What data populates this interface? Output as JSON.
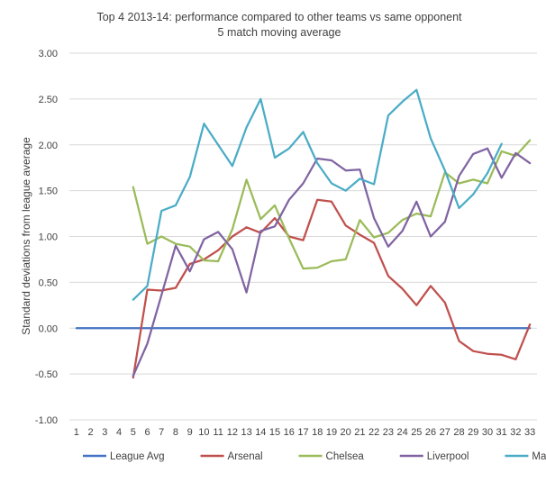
{
  "chart_data": {
    "type": "line",
    "title": "Top 4 2013-14: performance compared to other teams vs same opponent",
    "subtitle": "5 match moving average",
    "xlabel": "",
    "ylabel": "Standard deviations from league average",
    "ylim": [
      -1.0,
      3.0
    ],
    "yticks": [
      "3.00",
      "2.50",
      "2.00",
      "1.50",
      "1.00",
      "0.50",
      "0.00",
      "-0.50",
      "-1.00"
    ],
    "ytick_values": [
      3.0,
      2.5,
      2.0,
      1.5,
      1.0,
      0.5,
      0.0,
      -0.5,
      -1.0
    ],
    "x": [
      1,
      2,
      3,
      4,
      5,
      6,
      7,
      8,
      9,
      10,
      11,
      12,
      13,
      14,
      15,
      16,
      17,
      18,
      19,
      20,
      21,
      22,
      23,
      24,
      25,
      26,
      27,
      28,
      29,
      30,
      31,
      32,
      33
    ],
    "grid": true,
    "legend_position": "bottom",
    "series": [
      {
        "name": "League Avg",
        "color": "#4472c4",
        "x": [
          1,
          2,
          3,
          4,
          5,
          6,
          7,
          8,
          9,
          10,
          11,
          12,
          13,
          14,
          15,
          16,
          17,
          18,
          19,
          20,
          21,
          22,
          23,
          24,
          25,
          26,
          27,
          28,
          29,
          30,
          31,
          32,
          33
        ],
        "values": [
          0,
          0,
          0,
          0,
          0,
          0,
          0,
          0,
          0,
          0,
          0,
          0,
          0,
          0,
          0,
          0,
          0,
          0,
          0,
          0,
          0,
          0,
          0,
          0,
          0,
          0,
          0,
          0,
          0,
          0,
          0,
          0,
          0
        ]
      },
      {
        "name": "Arsenal",
        "color": "#c0504d",
        "x": [
          5,
          6,
          7,
          8,
          9,
          10,
          11,
          12,
          13,
          14,
          15,
          16,
          17,
          18,
          19,
          20,
          21,
          22,
          23,
          24,
          25,
          26,
          27,
          28,
          29,
          30,
          31,
          32,
          33
        ],
        "values": [
          -0.54,
          0.42,
          0.41,
          0.44,
          0.7,
          0.75,
          0.85,
          1.0,
          1.1,
          1.04,
          1.2,
          1.0,
          0.96,
          1.4,
          1.38,
          1.12,
          1.02,
          0.93,
          0.57,
          0.43,
          0.25,
          0.46,
          0.28,
          -0.14,
          -0.25,
          -0.28,
          -0.29,
          -0.34,
          0.04
        ]
      },
      {
        "name": "Chelsea",
        "color": "#9bbb59",
        "x": [
          5,
          6,
          7,
          8,
          9,
          10,
          11,
          12,
          13,
          14,
          15,
          16,
          17,
          18,
          19,
          20,
          21,
          22,
          23,
          24,
          25,
          26,
          27,
          28,
          29,
          30,
          31,
          32,
          33
        ],
        "values": [
          1.54,
          0.92,
          1.0,
          0.92,
          0.89,
          0.74,
          0.73,
          1.08,
          1.62,
          1.19,
          1.34,
          0.98,
          0.65,
          0.66,
          0.73,
          0.75,
          1.18,
          0.99,
          1.04,
          1.18,
          1.25,
          1.22,
          1.7,
          1.58,
          1.62,
          1.58,
          1.93,
          1.88,
          2.05
        ]
      },
      {
        "name": "Liverpool",
        "color": "#8064a2",
        "x": [
          5,
          6,
          7,
          8,
          9,
          10,
          11,
          12,
          13,
          14,
          15,
          16,
          17,
          18,
          19,
          20,
          21,
          22,
          23,
          24,
          25,
          26,
          27,
          28,
          29,
          30,
          31,
          32,
          33
        ],
        "values": [
          -0.52,
          -0.17,
          0.36,
          0.9,
          0.62,
          0.97,
          1.05,
          0.86,
          0.39,
          1.06,
          1.11,
          1.4,
          1.58,
          1.85,
          1.83,
          1.72,
          1.73,
          1.2,
          0.89,
          1.06,
          1.38,
          1.0,
          1.16,
          1.66,
          1.9,
          1.96,
          1.64,
          1.91,
          1.8
        ]
      },
      {
        "name": "Man City",
        "color": "#4bacc6",
        "x": [
          5,
          6,
          7,
          8,
          9,
          10,
          11,
          12,
          13,
          14,
          15,
          16,
          17,
          18,
          19,
          20,
          21,
          22,
          23,
          24,
          25,
          26,
          27,
          28,
          29,
          30,
          31
        ],
        "values": [
          0.31,
          0.46,
          1.28,
          1.34,
          1.65,
          2.23,
          2.0,
          1.77,
          2.19,
          2.5,
          1.86,
          1.96,
          2.14,
          1.8,
          1.58,
          1.5,
          1.63,
          1.57,
          2.32,
          2.47,
          2.6,
          2.07,
          1.72,
          1.31,
          1.46,
          1.69,
          2.01
        ]
      }
    ]
  }
}
